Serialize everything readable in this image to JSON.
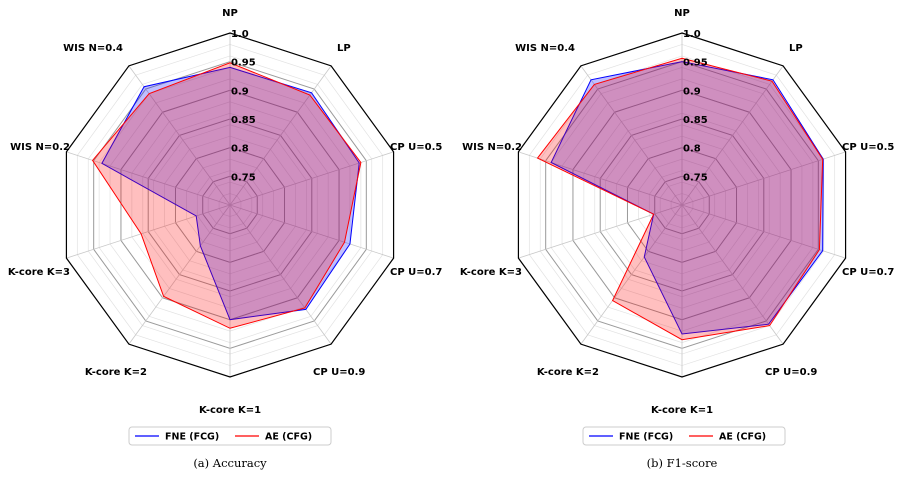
{
  "chart_data": [
    {
      "type": "radar",
      "caption": "(a) Accuracy",
      "axes": [
        "NP",
        "LP",
        "CP U=0.5",
        "CP U=0.7",
        "CP U=0.9",
        "K-core K=1",
        "K-core K=2",
        "K-core K=3",
        "WIS N=0.2",
        "WIS N=0.4"
      ],
      "rlim": [
        0.7,
        1.0
      ],
      "rticks": [
        0.75,
        0.8,
        0.85,
        0.9,
        0.95,
        1.0
      ],
      "rtick_labels": [
        "0.75",
        "0.8",
        "0.85",
        "0.9",
        "0.95",
        "1.0"
      ],
      "series": [
        {
          "name": "FNE (FCG)",
          "color": "#0000ff",
          "values": [
            0.94,
            0.942,
            0.937,
            0.92,
            0.925,
            0.9,
            0.788,
            0.762,
            0.935,
            0.955
          ]
        },
        {
          "name": "AE (CFG)",
          "color": "#ff0000",
          "values": [
            0.948,
            0.937,
            0.94,
            0.91,
            0.922,
            0.915,
            0.897,
            0.863,
            0.952,
            0.94
          ]
        }
      ],
      "legend": "bottom-center"
    },
    {
      "type": "radar",
      "caption": "(b) F1-score",
      "axes": [
        "NP",
        "LP",
        "CP U=0.5",
        "CP U=0.7",
        "CP U=0.9",
        "K-core K=1",
        "K-core K=2",
        "K-core K=3",
        "WIS N=0.2",
        "WIS N=0.4"
      ],
      "rlim": [
        0.7,
        1.0
      ],
      "rticks": [
        0.75,
        0.8,
        0.85,
        0.9,
        0.95,
        1.0
      ],
      "rtick_labels": [
        "0.75",
        "0.8",
        "0.85",
        "0.9",
        "0.95",
        "1.0"
      ],
      "series": [
        {
          "name": "FNE (FCG)",
          "color": "#0000ff",
          "values": [
            0.95,
            0.97,
            0.959,
            0.958,
            0.957,
            0.925,
            0.812,
            0.752,
            0.94,
            0.97
          ]
        },
        {
          "name": "AE (CFG)",
          "color": "#ff0000",
          "values": [
            0.956,
            0.967,
            0.958,
            0.952,
            0.96,
            0.935,
            0.906,
            0.752,
            0.965,
            0.96
          ]
        }
      ],
      "legend": "bottom-center"
    }
  ]
}
